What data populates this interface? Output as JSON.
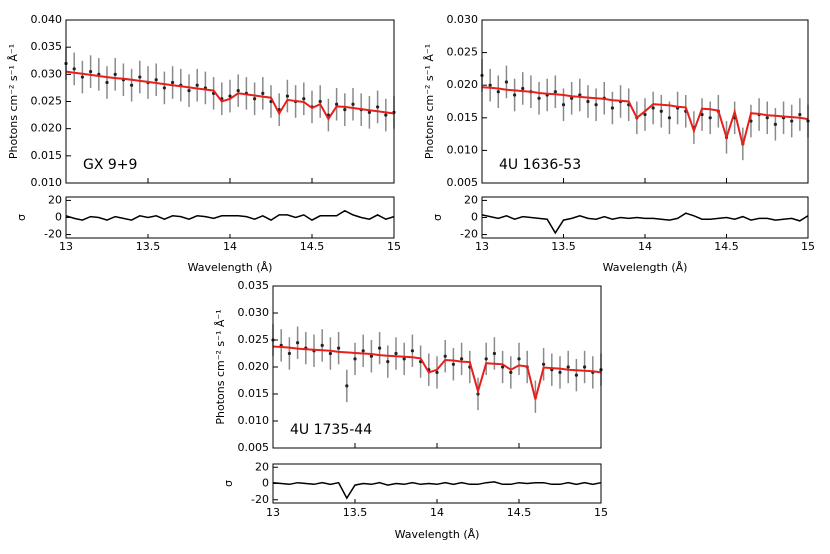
{
  "chart_data": [
    {
      "type": "line",
      "label": "GX 9+9",
      "xlabel": "Wavelength (Å)",
      "ylabel": "Photons cm⁻² s⁻¹ Å⁻¹",
      "x": [
        13,
        13.05,
        13.1,
        13.15,
        13.2,
        13.25,
        13.3,
        13.35,
        13.4,
        13.45,
        13.5,
        13.55,
        13.6,
        13.65,
        13.7,
        13.75,
        13.8,
        13.85,
        13.9,
        13.95,
        14,
        14.05,
        14.1,
        14.15,
        14.2,
        14.25,
        14.3,
        14.35,
        14.4,
        14.45,
        14.5,
        14.55,
        14.6,
        14.65,
        14.7,
        14.75,
        14.8,
        14.85,
        14.9,
        14.95,
        15
      ],
      "xlim": [
        13,
        15
      ],
      "xticks": [
        13,
        13.5,
        14,
        14.5,
        15
      ],
      "ylim": [
        0.01,
        0.04
      ],
      "yticks": [
        {
          "value": 0.01,
          "label": "0.010"
        },
        {
          "value": 0.015,
          "label": "0.015"
        },
        {
          "value": 0.02,
          "label": "0.020"
        },
        {
          "value": 0.025,
          "label": "0.025"
        },
        {
          "value": 0.03,
          "label": "0.030"
        },
        {
          "value": 0.035,
          "label": "0.035"
        },
        {
          "value": 0.04,
          "label": "0.040"
        }
      ],
      "series": [
        {
          "color": "#222222",
          "error": 0.003,
          "values": [
            0.032,
            0.031,
            0.0295,
            0.0305,
            0.03,
            0.0285,
            0.03,
            0.029,
            0.028,
            0.0295,
            0.0285,
            0.029,
            0.0275,
            0.0285,
            0.028,
            0.027,
            0.028,
            0.0275,
            0.0265,
            0.0255,
            0.026,
            0.027,
            0.0265,
            0.0255,
            0.0265,
            0.025,
            0.0235,
            0.026,
            0.025,
            0.0255,
            0.024,
            0.025,
            0.0225,
            0.0245,
            0.0235,
            0.0245,
            0.0235,
            0.023,
            0.024,
            0.0225,
            0.023
          ]
        },
        {
          "color": "#e8201c",
          "values": [
            0.0305,
            0.0303,
            0.0301,
            0.0299,
            0.0297,
            0.0295,
            0.0293,
            0.0292,
            0.029,
            0.0288,
            0.0286,
            0.0284,
            0.0282,
            0.028,
            0.0278,
            0.0276,
            0.0274,
            0.0272,
            0.027,
            0.025,
            0.0255,
            0.0265,
            0.0263,
            0.0261,
            0.0259,
            0.0257,
            0.0228,
            0.0253,
            0.0251,
            0.0249,
            0.0238,
            0.0245,
            0.0218,
            0.0241,
            0.024,
            0.0238,
            0.0236,
            0.0234,
            0.0232,
            0.023,
            0.0228
          ]
        }
      ],
      "residual": {
        "label": "σ",
        "color": "#000000",
        "ylim": [
          -24,
          24
        ],
        "yticks": [
          20,
          0,
          -20
        ],
        "values": [
          2,
          -1,
          -3,
          1,
          0,
          -3,
          1,
          -1,
          -3,
          2,
          0,
          2,
          -2,
          2,
          1,
          -2,
          2,
          1,
          -1,
          2,
          2,
          2,
          1,
          -2,
          2,
          -3,
          3,
          3,
          0,
          3,
          -3,
          2,
          2,
          2,
          8,
          3,
          0,
          -2,
          3,
          -2,
          1
        ]
      }
    },
    {
      "type": "line",
      "label": "4U 1636-53",
      "xlabel": "Wavelength (Å)",
      "ylabel": "Photons cm⁻² s⁻¹ Å⁻¹",
      "x": [
        13,
        13.05,
        13.1,
        13.15,
        13.2,
        13.25,
        13.3,
        13.35,
        13.4,
        13.45,
        13.5,
        13.55,
        13.6,
        13.65,
        13.7,
        13.75,
        13.8,
        13.85,
        13.9,
        13.95,
        14,
        14.05,
        14.1,
        14.15,
        14.2,
        14.25,
        14.3,
        14.35,
        14.4,
        14.45,
        14.5,
        14.55,
        14.6,
        14.65,
        14.7,
        14.75,
        14.8,
        14.85,
        14.9,
        14.95,
        15
      ],
      "xlim": [
        13,
        15
      ],
      "xticks": [
        13,
        13.5,
        14,
        14.5,
        15
      ],
      "ylim": [
        0.005,
        0.03
      ],
      "yticks": [
        {
          "value": 0.005,
          "label": "0.005"
        },
        {
          "value": 0.01,
          "label": "0.010"
        },
        {
          "value": 0.015,
          "label": "0.015"
        },
        {
          "value": 0.02,
          "label": "0.020"
        },
        {
          "value": 0.025,
          "label": "0.025"
        },
        {
          "value": 0.03,
          "label": "0.030"
        }
      ],
      "series": [
        {
          "color": "#222222",
          "error": 0.0025,
          "values": [
            0.0215,
            0.02,
            0.019,
            0.0205,
            0.0185,
            0.0195,
            0.019,
            0.018,
            0.0185,
            0.019,
            0.017,
            0.018,
            0.0185,
            0.0175,
            0.017,
            0.018,
            0.0165,
            0.0175,
            0.017,
            0.015,
            0.0155,
            0.0165,
            0.016,
            0.015,
            0.0165,
            0.016,
            0.0135,
            0.0155,
            0.015,
            0.016,
            0.012,
            0.015,
            0.011,
            0.0145,
            0.0155,
            0.015,
            0.014,
            0.015,
            0.0145,
            0.0155,
            0.0145
          ]
        },
        {
          "color": "#e8201c",
          "values": [
            0.0197,
            0.0196,
            0.0195,
            0.0193,
            0.0192,
            0.0191,
            0.019,
            0.0188,
            0.0187,
            0.0186,
            0.0185,
            0.0183,
            0.0182,
            0.0181,
            0.018,
            0.0179,
            0.0177,
            0.0176,
            0.0175,
            0.015,
            0.016,
            0.0171,
            0.017,
            0.0169,
            0.0167,
            0.0166,
            0.013,
            0.0164,
            0.0163,
            0.0161,
            0.012,
            0.0159,
            0.0108,
            0.0157,
            0.0156,
            0.0154,
            0.0153,
            0.0152,
            0.0151,
            0.015,
            0.0148
          ]
        }
      ],
      "residual": {
        "label": "σ",
        "color": "#000000",
        "ylim": [
          -24,
          24
        ],
        "yticks": [
          20,
          0,
          -20
        ],
        "values": [
          3,
          1,
          -1,
          2,
          -2,
          1,
          0,
          -1,
          -2,
          -18,
          -3,
          -1,
          2,
          -1,
          -2,
          1,
          -2,
          0,
          -1,
          0,
          -1,
          -1,
          -2,
          -3,
          -1,
          5,
          2,
          -2,
          -2,
          -1,
          0,
          -2,
          1,
          -3,
          -1,
          -1,
          -3,
          -2,
          -1,
          -4,
          2
        ]
      }
    },
    {
      "type": "line",
      "label": "4U 1735-44",
      "xlabel": "Wavelength (Å)",
      "ylabel": "Photons cm⁻² s⁻¹ Å⁻¹",
      "x": [
        13,
        13.05,
        13.1,
        13.15,
        13.2,
        13.25,
        13.3,
        13.35,
        13.4,
        13.45,
        13.5,
        13.55,
        13.6,
        13.65,
        13.7,
        13.75,
        13.8,
        13.85,
        13.9,
        13.95,
        14,
        14.05,
        14.1,
        14.15,
        14.2,
        14.25,
        14.3,
        14.35,
        14.4,
        14.45,
        14.5,
        14.55,
        14.6,
        14.65,
        14.7,
        14.75,
        14.8,
        14.85,
        14.9,
        14.95,
        15
      ],
      "xlim": [
        13,
        15
      ],
      "xticks": [
        13,
        13.5,
        14,
        14.5,
        15
      ],
      "ylim": [
        0.005,
        0.035
      ],
      "yticks": [
        {
          "value": 0.005,
          "label": "0.005"
        },
        {
          "value": 0.01,
          "label": "0.010"
        },
        {
          "value": 0.015,
          "label": "0.015"
        },
        {
          "value": 0.02,
          "label": "0.020"
        },
        {
          "value": 0.025,
          "label": "0.025"
        },
        {
          "value": 0.03,
          "label": "0.030"
        },
        {
          "value": 0.035,
          "label": "0.035"
        }
      ],
      "series": [
        {
          "color": "#222222",
          "error": 0.003,
          "values": [
            0.025,
            0.024,
            0.0225,
            0.0245,
            0.0235,
            0.023,
            0.024,
            0.0225,
            0.0235,
            0.0165,
            0.0215,
            0.023,
            0.022,
            0.0235,
            0.021,
            0.0225,
            0.0215,
            0.023,
            0.021,
            0.0195,
            0.019,
            0.022,
            0.0205,
            0.0215,
            0.02,
            0.015,
            0.0215,
            0.0225,
            0.02,
            0.019,
            0.0215,
            0.02,
            0.0145,
            0.0205,
            0.0195,
            0.019,
            0.02,
            0.0185,
            0.02,
            0.019,
            0.0195
          ]
        },
        {
          "color": "#e8201c",
          "values": [
            0.0238,
            0.0237,
            0.0236,
            0.0234,
            0.0233,
            0.0232,
            0.0231,
            0.023,
            0.0228,
            0.0227,
            0.0226,
            0.0225,
            0.0224,
            0.0222,
            0.0221,
            0.022,
            0.0219,
            0.0218,
            0.0216,
            0.019,
            0.0195,
            0.0213,
            0.0212,
            0.021,
            0.0209,
            0.0155,
            0.0207,
            0.0206,
            0.0205,
            0.0195,
            0.0203,
            0.0201,
            0.014,
            0.0199,
            0.0198,
            0.0197,
            0.0195,
            0.0194,
            0.0193,
            0.0192,
            0.019
          ]
        }
      ],
      "residual": {
        "label": "σ",
        "color": "#000000",
        "ylim": [
          -24,
          24
        ],
        "yticks": [
          20,
          0,
          -20
        ],
        "values": [
          1,
          0,
          -1,
          1,
          0,
          -1,
          1,
          -1,
          1,
          -18,
          -2,
          0,
          -1,
          1,
          -2,
          0,
          -1,
          1,
          -1,
          0,
          -1,
          1,
          -1,
          1,
          -1,
          -1,
          1,
          2,
          -1,
          -1,
          1,
          0,
          1,
          1,
          -1,
          -1,
          1,
          -1,
          1,
          -1,
          1
        ]
      }
    }
  ]
}
